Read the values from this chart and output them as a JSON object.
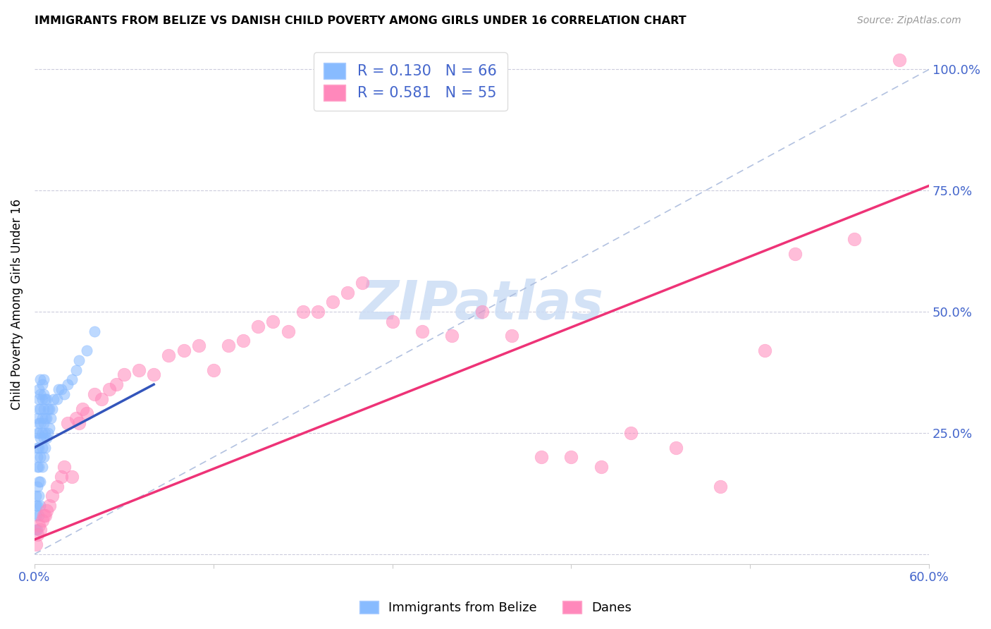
{
  "title": "IMMIGRANTS FROM BELIZE VS DANISH CHILD POVERTY AMONG GIRLS UNDER 16 CORRELATION CHART",
  "source": "Source: ZipAtlas.com",
  "ylabel": "Child Poverty Among Girls Under 16",
  "xlim": [
    0.0,
    0.6
  ],
  "ylim": [
    -0.02,
    1.05
  ],
  "ytick_positions": [
    0.0,
    0.25,
    0.5,
    0.75,
    1.0
  ],
  "ytick_labels": [
    "",
    "25.0%",
    "50.0%",
    "75.0%",
    "100.0%"
  ],
  "R_belize": 0.13,
  "N_belize": 66,
  "R_danes": 0.581,
  "N_danes": 55,
  "color_belize": "#88BBFF",
  "color_danes": "#FF88BB",
  "color_belize_line": "#3355BB",
  "color_danes_line": "#EE3377",
  "color_diag": "#AABBDD",
  "legend_label_belize": "Immigrants from Belize",
  "legend_label_danes": "Danes",
  "belize_x": [
    0.001,
    0.001,
    0.001,
    0.001,
    0.002,
    0.002,
    0.002,
    0.002,
    0.002,
    0.002,
    0.002,
    0.002,
    0.003,
    0.003,
    0.003,
    0.003,
    0.003,
    0.003,
    0.003,
    0.003,
    0.003,
    0.003,
    0.004,
    0.004,
    0.004,
    0.004,
    0.004,
    0.004,
    0.004,
    0.004,
    0.005,
    0.005,
    0.005,
    0.005,
    0.005,
    0.005,
    0.006,
    0.006,
    0.006,
    0.006,
    0.006,
    0.006,
    0.007,
    0.007,
    0.007,
    0.007,
    0.008,
    0.008,
    0.008,
    0.009,
    0.009,
    0.01,
    0.01,
    0.011,
    0.012,
    0.013,
    0.015,
    0.016,
    0.018,
    0.02,
    0.022,
    0.025,
    0.028,
    0.03,
    0.035,
    0.04
  ],
  "belize_y": [
    0.05,
    0.08,
    0.1,
    0.12,
    0.05,
    0.1,
    0.14,
    0.18,
    0.2,
    0.22,
    0.25,
    0.28,
    0.08,
    0.12,
    0.15,
    0.18,
    0.22,
    0.25,
    0.27,
    0.3,
    0.32,
    0.34,
    0.1,
    0.15,
    0.2,
    0.24,
    0.27,
    0.3,
    0.33,
    0.36,
    0.18,
    0.22,
    0.25,
    0.28,
    0.32,
    0.35,
    0.2,
    0.24,
    0.27,
    0.3,
    0.33,
    0.36,
    0.22,
    0.25,
    0.28,
    0.32,
    0.24,
    0.28,
    0.32,
    0.25,
    0.3,
    0.26,
    0.3,
    0.28,
    0.3,
    0.32,
    0.32,
    0.34,
    0.34,
    0.33,
    0.35,
    0.36,
    0.38,
    0.4,
    0.42,
    0.46
  ],
  "danes_x": [
    0.001,
    0.002,
    0.003,
    0.004,
    0.005,
    0.006,
    0.007,
    0.008,
    0.01,
    0.012,
    0.015,
    0.018,
    0.02,
    0.022,
    0.025,
    0.028,
    0.03,
    0.032,
    0.035,
    0.04,
    0.045,
    0.05,
    0.055,
    0.06,
    0.07,
    0.08,
    0.09,
    0.1,
    0.11,
    0.12,
    0.13,
    0.14,
    0.15,
    0.16,
    0.17,
    0.18,
    0.19,
    0.2,
    0.21,
    0.22,
    0.24,
    0.26,
    0.28,
    0.3,
    0.32,
    0.34,
    0.36,
    0.38,
    0.4,
    0.43,
    0.46,
    0.49,
    0.51,
    0.55,
    0.58
  ],
  "danes_y": [
    0.02,
    0.04,
    0.06,
    0.05,
    0.07,
    0.08,
    0.08,
    0.09,
    0.1,
    0.12,
    0.14,
    0.16,
    0.18,
    0.27,
    0.16,
    0.28,
    0.27,
    0.3,
    0.29,
    0.33,
    0.32,
    0.34,
    0.35,
    0.37,
    0.38,
    0.37,
    0.41,
    0.42,
    0.43,
    0.38,
    0.43,
    0.44,
    0.47,
    0.48,
    0.46,
    0.5,
    0.5,
    0.52,
    0.54,
    0.56,
    0.48,
    0.46,
    0.45,
    0.5,
    0.45,
    0.2,
    0.2,
    0.18,
    0.25,
    0.22,
    0.14,
    0.42,
    0.62,
    0.65,
    1.02
  ]
}
